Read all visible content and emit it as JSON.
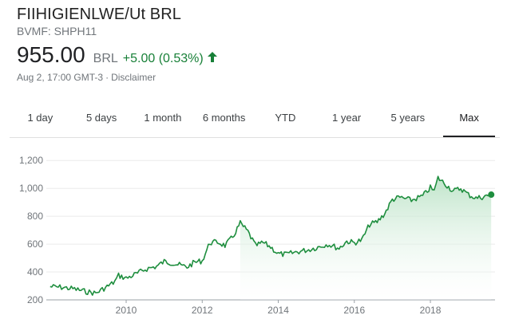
{
  "quote": {
    "name": "FIIHIGIENLWE/Ut BRL",
    "ticker": "BVMF: SHPH11",
    "price": "955.00",
    "currency": "BRL",
    "change": "+5.00 (0.53%)",
    "timestamp": "Aug 2, 17:00 GMT-3",
    "separator": "·",
    "disclaimer": "Disclaimer"
  },
  "tabs": [
    {
      "label": "1 day"
    },
    {
      "label": "5 days"
    },
    {
      "label": "1 month"
    },
    {
      "label": "6 months"
    },
    {
      "label": "YTD"
    },
    {
      "label": "1 year"
    },
    {
      "label": "5 years"
    },
    {
      "label": "Max",
      "active": true
    }
  ],
  "colors": {
    "positive": "#188038",
    "line": "#1e8e3e",
    "fill_top": "#b7e1c3",
    "grid": "#ebebeb"
  },
  "chart_data": {
    "type": "area",
    "y_ticks": [
      200,
      400,
      600,
      800,
      1000,
      1200
    ],
    "y_tick_labels": [
      "200",
      "400",
      "600",
      "800",
      "1,000",
      "1,200"
    ],
    "x_ticks": [
      2010,
      2012,
      2014,
      2016,
      2018
    ],
    "x_tick_labels": [
      "2010",
      "2012",
      "2014",
      "2016",
      "2018"
    ],
    "xlim": [
      2007.9,
      2019.7
    ],
    "ylim": [
      200,
      1230
    ],
    "series": [
      {
        "x": [
          2008.0,
          2008.3,
          2008.6,
          2008.9,
          2009.2,
          2009.5,
          2009.7,
          2009.8,
          2010.0,
          2010.3,
          2010.5,
          2010.8,
          2011.0,
          2011.2,
          2011.4,
          2011.6,
          2011.8,
          2012.0,
          2012.2,
          2012.4,
          2012.6,
          2012.8,
          2013.0,
          2013.2,
          2013.4,
          2013.6,
          2013.8,
          2014.0,
          2014.2,
          2014.5,
          2014.8,
          2015.0,
          2015.3,
          2015.6,
          2015.8,
          2016.0,
          2016.2,
          2016.4,
          2016.6,
          2016.8,
          2017.0,
          2017.2,
          2017.5,
          2017.8,
          2018.0,
          2018.1,
          2018.2,
          2018.4,
          2018.6,
          2018.8,
          2019.0,
          2019.2,
          2019.4,
          2019.6
        ],
        "y": [
          295,
          290,
          280,
          262,
          248,
          295,
          330,
          375,
          355,
          390,
          420,
          440,
          475,
          465,
          450,
          435,
          470,
          480,
          610,
          615,
          590,
          650,
          750,
          690,
          590,
          610,
          580,
          530,
          525,
          545,
          560,
          575,
          600,
          570,
          620,
          610,
          630,
          740,
          760,
          820,
          920,
          935,
          915,
          945,
          1005,
          980,
          1075,
          1030,
          980,
          1000,
          955,
          930,
          940,
          955
        ]
      }
    ],
    "last_point": {
      "x": 2019.6,
      "y": 955
    },
    "grid": "horizontal"
  }
}
